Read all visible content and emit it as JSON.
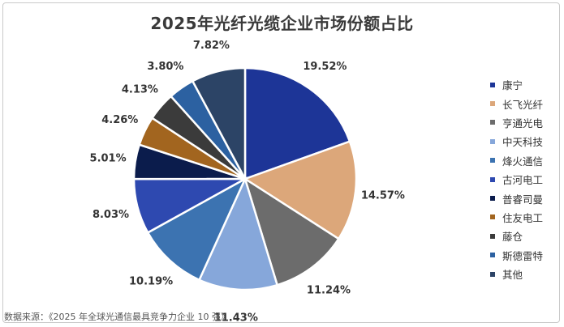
{
  "chart_data": {
    "type": "pie",
    "title": "2025年光纤光缆企业市场份额占比",
    "slices": [
      {
        "label": "康宁",
        "value": 19.52,
        "value_text": "19.52%",
        "color": "#1d3597"
      },
      {
        "label": "长飞光纤",
        "value": 14.57,
        "value_text": "14.57%",
        "color": "#dca77a"
      },
      {
        "label": "亨通光电",
        "value": 11.24,
        "value_text": "11.24%",
        "color": "#6c6c6c"
      },
      {
        "label": "中天科技",
        "value": 11.43,
        "value_text": "11.43%",
        "color": "#86a7da"
      },
      {
        "label": "烽火通信",
        "value": 10.19,
        "value_text": "10.19%",
        "color": "#3c73b1"
      },
      {
        "label": "古河电工",
        "value": 8.03,
        "value_text": "8.03%",
        "color": "#2e49b0"
      },
      {
        "label": "普睿司曼",
        "value": 5.01,
        "value_text": "5.01%",
        "color": "#0b1c4c"
      },
      {
        "label": "住友电工",
        "value": 4.26,
        "value_text": "4.26%",
        "color": "#a2651f"
      },
      {
        "label": "藤仓",
        "value": 4.13,
        "value_text": "4.13%",
        "color": "#3b3b3b"
      },
      {
        "label": "斯德雷特",
        "value": 3.8,
        "value_text": "3.80%",
        "color": "#2c61a1"
      },
      {
        "label": "其他",
        "value": 7.82,
        "value_text": "7.82%",
        "color": "#2c4466"
      }
    ],
    "legend_position": "right",
    "source": "数据来源：《2025 年全球光通信最具竞争力企业 10 强》"
  }
}
